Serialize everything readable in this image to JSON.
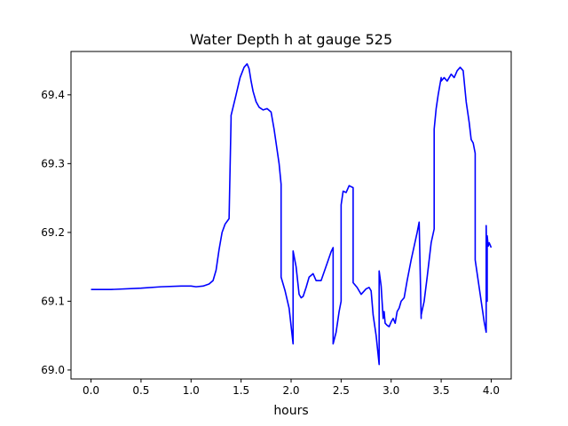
{
  "chart_data": {
    "type": "line",
    "title": "Water Depth h at gauge 525",
    "xlabel": "hours",
    "ylabel": "",
    "xlim": [
      -0.2,
      4.2
    ],
    "ylim": [
      68.987,
      69.463
    ],
    "xticks": [
      0.0,
      0.5,
      1.0,
      1.5,
      2.0,
      2.5,
      3.0,
      3.5,
      4.0
    ],
    "xtick_labels": [
      "0.0",
      "0.5",
      "1.0",
      "1.5",
      "2.0",
      "2.5",
      "3.0",
      "3.5",
      "4.0"
    ],
    "yticks": [
      69.0,
      69.1,
      69.2,
      69.3,
      69.4
    ],
    "ytick_labels": [
      "69.0",
      "69.1",
      "69.2",
      "69.3",
      "69.4"
    ],
    "grid": false,
    "series": [
      {
        "color": "#0000ff",
        "x": [
          0.0,
          0.2,
          0.5,
          0.7,
          0.9,
          1.0,
          1.05,
          1.12,
          1.18,
          1.22,
          1.25,
          1.28,
          1.31,
          1.34,
          1.38,
          1.4,
          1.4,
          1.42,
          1.45,
          1.49,
          1.53,
          1.56,
          1.58,
          1.6,
          1.62,
          1.65,
          1.68,
          1.72,
          1.76,
          1.8,
          1.83,
          1.85,
          1.88,
          1.9,
          1.9,
          1.94,
          1.98,
          2.02,
          2.02,
          2.05,
          2.08,
          2.1,
          2.12,
          2.15,
          2.18,
          2.22,
          2.25,
          2.3,
          2.36,
          2.4,
          2.42,
          2.42,
          2.45,
          2.48,
          2.5,
          2.5,
          2.52,
          2.55,
          2.58,
          2.62,
          2.62,
          2.66,
          2.7,
          2.75,
          2.78,
          2.8,
          2.82,
          2.85,
          2.88,
          2.88,
          2.9,
          2.92,
          2.93,
          2.94,
          2.96,
          2.98,
          3.0,
          3.02,
          3.04,
          3.06,
          3.08,
          3.1,
          3.13,
          3.16,
          3.2,
          3.23,
          3.26,
          3.28,
          3.3,
          3.3,
          3.33,
          3.36,
          3.4,
          3.43,
          3.43,
          3.45,
          3.47,
          3.5,
          3.5,
          3.53,
          3.56,
          3.6,
          3.63,
          3.66,
          3.69,
          3.72,
          3.75,
          3.78,
          3.8,
          3.82,
          3.84,
          3.84,
          3.87,
          3.9,
          3.93,
          3.95,
          3.95,
          3.96,
          3.96,
          3.97,
          3.98,
          4.0
        ],
        "y": [
          69.117,
          69.117,
          69.119,
          69.121,
          69.122,
          69.122,
          69.121,
          69.122,
          69.125,
          69.13,
          69.145,
          69.175,
          69.2,
          69.212,
          69.22,
          69.365,
          69.37,
          69.382,
          69.4,
          69.425,
          69.44,
          69.445,
          69.438,
          69.42,
          69.405,
          69.39,
          69.382,
          69.378,
          69.38,
          69.375,
          69.35,
          69.33,
          69.3,
          69.27,
          69.135,
          69.115,
          69.09,
          69.038,
          69.173,
          69.15,
          69.11,
          69.105,
          69.107,
          69.12,
          69.135,
          69.14,
          69.13,
          69.13,
          69.155,
          69.172,
          69.178,
          69.038,
          69.055,
          69.085,
          69.1,
          69.24,
          69.26,
          69.258,
          69.268,
          69.265,
          69.127,
          69.12,
          69.11,
          69.118,
          69.12,
          69.115,
          69.08,
          69.05,
          69.008,
          69.144,
          69.122,
          69.075,
          69.085,
          69.068,
          69.065,
          69.063,
          69.07,
          69.075,
          69.068,
          69.085,
          69.09,
          69.1,
          69.105,
          69.13,
          69.16,
          69.18,
          69.2,
          69.215,
          69.075,
          69.08,
          69.1,
          69.135,
          69.185,
          69.205,
          69.35,
          69.38,
          69.4,
          69.425,
          69.42,
          69.425,
          69.42,
          69.43,
          69.425,
          69.435,
          69.44,
          69.435,
          69.39,
          69.36,
          69.335,
          69.33,
          69.315,
          69.16,
          69.13,
          69.1,
          69.07,
          69.055,
          69.21,
          69.1,
          69.195,
          69.18,
          69.185,
          69.178
        ]
      }
    ]
  }
}
